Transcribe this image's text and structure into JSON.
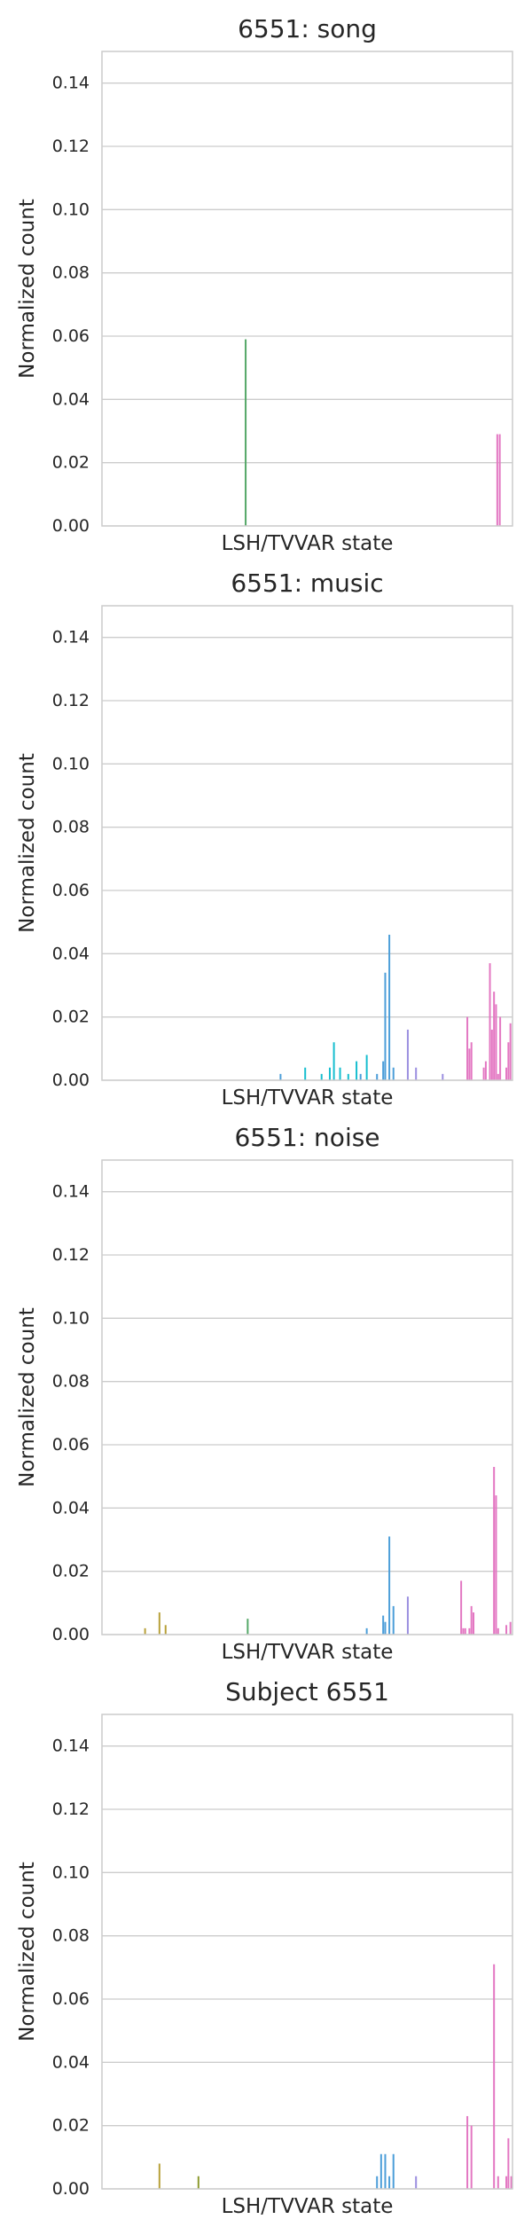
{
  "chart_data": [
    {
      "type": "bar",
      "title": "6551: song",
      "xlabel": "LSH/TVVAR state",
      "ylabel": "Normalized count",
      "ylim": [
        0,
        0.15
      ],
      "yticks": [
        "0.00",
        "0.02",
        "0.04",
        "0.06",
        "0.08",
        "0.10",
        "0.12",
        "0.14"
      ],
      "grid": true,
      "bars": [
        {
          "x": 0.35,
          "value": 0.059,
          "color": "#55a868"
        },
        {
          "x": 0.963,
          "value": 0.029,
          "color": "#e377c2"
        },
        {
          "x": 0.969,
          "value": 0.029,
          "color": "#e377c2"
        }
      ]
    },
    {
      "type": "bar",
      "title": "6551: music",
      "xlabel": "LSH/TVVAR state",
      "ylabel": "Normalized count",
      "ylim": [
        0,
        0.15
      ],
      "yticks": [
        "0.00",
        "0.02",
        "0.04",
        "0.06",
        "0.08",
        "0.10",
        "0.12",
        "0.14"
      ],
      "grid": true,
      "bars": [
        {
          "x": 0.435,
          "value": 0.002,
          "color": "#4c9ed9"
        },
        {
          "x": 0.495,
          "value": 0.004,
          "color": "#17becf"
        },
        {
          "x": 0.535,
          "value": 0.002,
          "color": "#17becf"
        },
        {
          "x": 0.555,
          "value": 0.004,
          "color": "#17becf"
        },
        {
          "x": 0.565,
          "value": 0.012,
          "color": "#17becf"
        },
        {
          "x": 0.58,
          "value": 0.004,
          "color": "#17becf"
        },
        {
          "x": 0.6,
          "value": 0.002,
          "color": "#17becf"
        },
        {
          "x": 0.62,
          "value": 0.006,
          "color": "#17becf"
        },
        {
          "x": 0.63,
          "value": 0.002,
          "color": "#4c9ed9"
        },
        {
          "x": 0.645,
          "value": 0.008,
          "color": "#17becf"
        },
        {
          "x": 0.67,
          "value": 0.002,
          "color": "#4c9ed9"
        },
        {
          "x": 0.685,
          "value": 0.006,
          "color": "#4c9ed9"
        },
        {
          "x": 0.69,
          "value": 0.034,
          "color": "#4c9ed9"
        },
        {
          "x": 0.7,
          "value": 0.046,
          "color": "#4c9ed9"
        },
        {
          "x": 0.71,
          "value": 0.004,
          "color": "#4c9ed9"
        },
        {
          "x": 0.745,
          "value": 0.016,
          "color": "#9b8fe0"
        },
        {
          "x": 0.765,
          "value": 0.004,
          "color": "#9b8fe0"
        },
        {
          "x": 0.83,
          "value": 0.002,
          "color": "#9b8fe0"
        },
        {
          "x": 0.89,
          "value": 0.02,
          "color": "#e377c2"
        },
        {
          "x": 0.895,
          "value": 0.01,
          "color": "#e377c2"
        },
        {
          "x": 0.9,
          "value": 0.012,
          "color": "#e377c2"
        },
        {
          "x": 0.93,
          "value": 0.004,
          "color": "#e377c2"
        },
        {
          "x": 0.935,
          "value": 0.006,
          "color": "#e377c2"
        },
        {
          "x": 0.945,
          "value": 0.037,
          "color": "#e377c2"
        },
        {
          "x": 0.95,
          "value": 0.016,
          "color": "#e377c2"
        },
        {
          "x": 0.955,
          "value": 0.028,
          "color": "#e377c2"
        },
        {
          "x": 0.96,
          "value": 0.024,
          "color": "#e377c2"
        },
        {
          "x": 0.965,
          "value": 0.002,
          "color": "#e377c2"
        },
        {
          "x": 0.97,
          "value": 0.02,
          "color": "#e377c2"
        },
        {
          "x": 0.985,
          "value": 0.004,
          "color": "#e377c2"
        },
        {
          "x": 0.99,
          "value": 0.012,
          "color": "#e377c2"
        },
        {
          "x": 0.995,
          "value": 0.018,
          "color": "#e377c2"
        }
      ]
    },
    {
      "type": "bar",
      "title": "6551: noise",
      "xlabel": "LSH/TVVAR state",
      "ylabel": "Normalized count",
      "ylim": [
        0,
        0.15
      ],
      "yticks": [
        "0.00",
        "0.02",
        "0.04",
        "0.06",
        "0.08",
        "0.10",
        "0.12",
        "0.14"
      ],
      "grid": true,
      "bars": [
        {
          "x": 0.105,
          "value": 0.002,
          "color": "#b8a13a"
        },
        {
          "x": 0.14,
          "value": 0.007,
          "color": "#b8a13a"
        },
        {
          "x": 0.155,
          "value": 0.003,
          "color": "#b8a13a"
        },
        {
          "x": 0.355,
          "value": 0.005,
          "color": "#55a868"
        },
        {
          "x": 0.645,
          "value": 0.002,
          "color": "#4c9ed9"
        },
        {
          "x": 0.685,
          "value": 0.006,
          "color": "#4c9ed9"
        },
        {
          "x": 0.69,
          "value": 0.004,
          "color": "#4c9ed9"
        },
        {
          "x": 0.7,
          "value": 0.031,
          "color": "#4c9ed9"
        },
        {
          "x": 0.71,
          "value": 0.009,
          "color": "#4c9ed9"
        },
        {
          "x": 0.745,
          "value": 0.012,
          "color": "#9b8fe0"
        },
        {
          "x": 0.875,
          "value": 0.017,
          "color": "#e377c2"
        },
        {
          "x": 0.88,
          "value": 0.002,
          "color": "#e377c2"
        },
        {
          "x": 0.885,
          "value": 0.002,
          "color": "#e377c2"
        },
        {
          "x": 0.895,
          "value": 0.002,
          "color": "#e377c2"
        },
        {
          "x": 0.9,
          "value": 0.009,
          "color": "#e377c2"
        },
        {
          "x": 0.905,
          "value": 0.007,
          "color": "#e377c2"
        },
        {
          "x": 0.955,
          "value": 0.053,
          "color": "#e377c2"
        },
        {
          "x": 0.96,
          "value": 0.044,
          "color": "#e377c2"
        },
        {
          "x": 0.965,
          "value": 0.002,
          "color": "#e377c2"
        },
        {
          "x": 0.985,
          "value": 0.003,
          "color": "#e377c2"
        },
        {
          "x": 0.995,
          "value": 0.004,
          "color": "#e377c2"
        }
      ]
    },
    {
      "type": "bar",
      "title": "Subject 6551",
      "xlabel": "LSH/TVVAR state",
      "ylabel": "Normalized count",
      "ylim": [
        0,
        0.15
      ],
      "yticks": [
        "0.00",
        "0.02",
        "0.04",
        "0.06",
        "0.08",
        "0.10",
        "0.12",
        "0.14"
      ],
      "grid": true,
      "bars": [
        {
          "x": 0.14,
          "value": 0.008,
          "color": "#b8a13a"
        },
        {
          "x": 0.235,
          "value": 0.004,
          "color": "#8c9a2e"
        },
        {
          "x": 0.67,
          "value": 0.004,
          "color": "#4c9ed9"
        },
        {
          "x": 0.68,
          "value": 0.011,
          "color": "#4c9ed9"
        },
        {
          "x": 0.69,
          "value": 0.011,
          "color": "#4c9ed9"
        },
        {
          "x": 0.7,
          "value": 0.004,
          "color": "#4c9ed9"
        },
        {
          "x": 0.71,
          "value": 0.011,
          "color": "#4c9ed9"
        },
        {
          "x": 0.765,
          "value": 0.004,
          "color": "#9b8fe0"
        },
        {
          "x": 0.89,
          "value": 0.023,
          "color": "#e377c2"
        },
        {
          "x": 0.9,
          "value": 0.02,
          "color": "#e377c2"
        },
        {
          "x": 0.955,
          "value": 0.071,
          "color": "#e377c2"
        },
        {
          "x": 0.965,
          "value": 0.004,
          "color": "#e377c2"
        },
        {
          "x": 0.985,
          "value": 0.004,
          "color": "#e377c2"
        },
        {
          "x": 0.99,
          "value": 0.016,
          "color": "#e377c2"
        },
        {
          "x": 0.997,
          "value": 0.004,
          "color": "#e377c2"
        }
      ]
    }
  ]
}
